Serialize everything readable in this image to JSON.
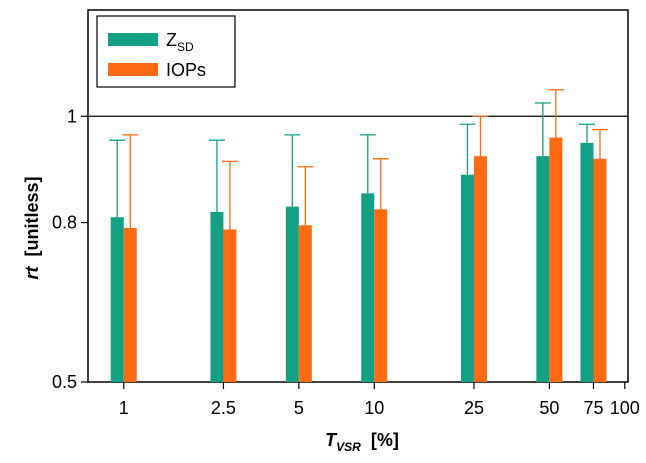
{
  "chart_data": {
    "type": "bar",
    "xlabel": {
      "main": "T",
      "sub": "VSR",
      "unit": "  [%]"
    },
    "ylabel": {
      "main": "rt",
      "unit": "  [unitless]"
    },
    "x_scale": "log",
    "x_ticks": [
      "1",
      "2.5",
      "5",
      "10",
      "25",
      "50",
      "75",
      "100"
    ],
    "y_ticks": [
      "0.5",
      "0.8",
      "1"
    ],
    "ylim": [
      0.5,
      1.2
    ],
    "reference_line": 1,
    "legend_position": "top-left",
    "categories": [
      1,
      2.5,
      5,
      10,
      25,
      50,
      75
    ],
    "series": [
      {
        "name": "Z",
        "name_sub": "SD",
        "color": "#14a085",
        "values": [
          0.81,
          0.82,
          0.83,
          0.855,
          0.89,
          0.925,
          0.95
        ],
        "error_upper": [
          0.955,
          0.955,
          0.965,
          0.965,
          0.985,
          1.025,
          0.985
        ]
      },
      {
        "name": "IOPs",
        "color": "#ff6a13",
        "values": [
          0.79,
          0.787,
          0.795,
          0.825,
          0.925,
          0.96,
          0.92
        ],
        "error_upper": [
          0.965,
          0.915,
          0.905,
          0.92,
          1.0,
          1.05,
          0.975
        ]
      }
    ]
  }
}
